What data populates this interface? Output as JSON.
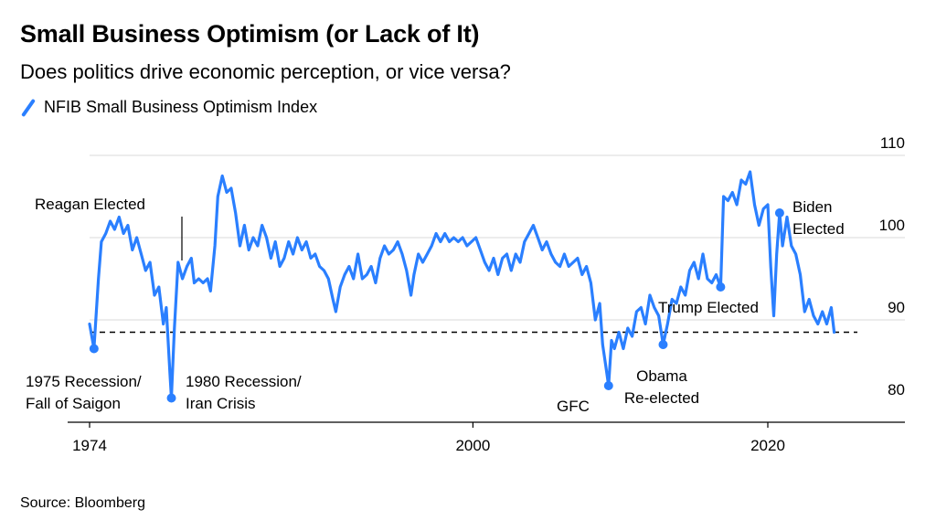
{
  "title": "Small Business Optimism (or Lack of It)",
  "subtitle": "Does politics drive economic perception, or vice versa?",
  "legend": {
    "label": "NFIB Small Business Optimism Index",
    "color": "#2a7fff"
  },
  "source": "Source: Bloomberg",
  "chart_data": {
    "type": "line",
    "title": "Small Business Optimism (or Lack of It)",
    "subtitle": "Does politics drive economic perception, or vice versa?",
    "xlabel": "",
    "ylabel": "",
    "x_ticks": [
      {
        "value": 1974,
        "label": "1974"
      },
      {
        "value": 2000,
        "label": "2000"
      },
      {
        "value": 2020,
        "label": "2020"
      }
    ],
    "y_ticks": [
      {
        "value": 110,
        "label": "110"
      },
      {
        "value": 100,
        "label": "100"
      },
      {
        "value": 90,
        "label": "90"
      },
      {
        "value": 80,
        "label": "80"
      }
    ],
    "xlim": [
      1973,
      2029
    ],
    "ylim": [
      79,
      110
    ],
    "grid": "horizontal",
    "legend_position": "top-left",
    "reference_line": {
      "y": 88.5,
      "style": "dashed"
    },
    "series": [
      {
        "name": "NFIB Small Business Optimism Index",
        "color": "#2a7fff",
        "points": [
          [
            1974.0,
            89.5
          ],
          [
            1974.3,
            86.5
          ],
          [
            1974.6,
            95.0
          ],
          [
            1974.8,
            99.5
          ],
          [
            1975.1,
            100.5
          ],
          [
            1975.4,
            102.0
          ],
          [
            1975.7,
            101.0
          ],
          [
            1976.0,
            102.5
          ],
          [
            1976.3,
            100.5
          ],
          [
            1976.6,
            101.5
          ],
          [
            1976.9,
            98.5
          ],
          [
            1977.2,
            100.0
          ],
          [
            1977.5,
            98.0
          ],
          [
            1977.8,
            96.0
          ],
          [
            1978.1,
            97.0
          ],
          [
            1978.4,
            93.0
          ],
          [
            1978.7,
            94.0
          ],
          [
            1979.0,
            89.5
          ],
          [
            1979.2,
            91.5
          ],
          [
            1979.45,
            83.5
          ],
          [
            1979.55,
            80.5
          ],
          [
            1979.75,
            89.0
          ],
          [
            1980.0,
            97.0
          ],
          [
            1980.3,
            95.0
          ],
          [
            1980.6,
            96.5
          ],
          [
            1980.9,
            97.5
          ],
          [
            1981.1,
            94.5
          ],
          [
            1981.4,
            95.0
          ],
          [
            1981.7,
            94.5
          ],
          [
            1982.0,
            95.0
          ],
          [
            1982.2,
            93.5
          ],
          [
            1982.5,
            99.0
          ],
          [
            1982.7,
            105.0
          ],
          [
            1983.0,
            107.5
          ],
          [
            1983.3,
            105.5
          ],
          [
            1983.6,
            106.0
          ],
          [
            1983.9,
            103.0
          ],
          [
            1984.2,
            99.0
          ],
          [
            1984.5,
            101.5
          ],
          [
            1984.8,
            98.5
          ],
          [
            1985.1,
            100.0
          ],
          [
            1985.4,
            99.0
          ],
          [
            1985.7,
            101.5
          ],
          [
            1986.0,
            100.0
          ],
          [
            1986.3,
            97.5
          ],
          [
            1986.6,
            99.5
          ],
          [
            1986.9,
            96.5
          ],
          [
            1987.2,
            97.5
          ],
          [
            1987.5,
            99.5
          ],
          [
            1987.8,
            98.0
          ],
          [
            1988.1,
            100.0
          ],
          [
            1988.4,
            98.5
          ],
          [
            1988.7,
            99.5
          ],
          [
            1989.0,
            97.5
          ],
          [
            1989.3,
            98.0
          ],
          [
            1989.6,
            96.5
          ],
          [
            1989.9,
            96.0
          ],
          [
            1990.2,
            95.0
          ],
          [
            1990.5,
            92.5
          ],
          [
            1990.7,
            91.0
          ],
          [
            1991.0,
            94.0
          ],
          [
            1991.3,
            95.5
          ],
          [
            1991.6,
            96.5
          ],
          [
            1991.9,
            95.0
          ],
          [
            1992.2,
            98.0
          ],
          [
            1992.5,
            95.0
          ],
          [
            1992.8,
            95.5
          ],
          [
            1993.1,
            96.5
          ],
          [
            1993.4,
            94.5
          ],
          [
            1993.7,
            97.5
          ],
          [
            1994.0,
            99.0
          ],
          [
            1994.3,
            98.0
          ],
          [
            1994.6,
            98.5
          ],
          [
            1994.9,
            99.5
          ],
          [
            1995.2,
            98.0
          ],
          [
            1995.5,
            96.0
          ],
          [
            1995.8,
            93.0
          ],
          [
            1996.0,
            95.5
          ],
          [
            1996.3,
            98.0
          ],
          [
            1996.6,
            97.0
          ],
          [
            1996.9,
            98.0
          ],
          [
            1997.2,
            99.0
          ],
          [
            1997.5,
            100.5
          ],
          [
            1997.8,
            99.5
          ],
          [
            1998.1,
            100.5
          ],
          [
            1998.4,
            99.5
          ],
          [
            1998.7,
            100.0
          ],
          [
            1999.0,
            99.5
          ],
          [
            1999.3,
            100.0
          ],
          [
            1999.6,
            99.0
          ],
          [
            1999.9,
            99.5
          ],
          [
            2000.2,
            100.0
          ],
          [
            2000.5,
            98.5
          ],
          [
            2000.8,
            97.0
          ],
          [
            2001.1,
            96.0
          ],
          [
            2001.4,
            97.5
          ],
          [
            2001.7,
            95.5
          ],
          [
            2002.0,
            97.5
          ],
          [
            2002.3,
            98.0
          ],
          [
            2002.6,
            96.0
          ],
          [
            2002.9,
            98.0
          ],
          [
            2003.2,
            97.0
          ],
          [
            2003.5,
            99.5
          ],
          [
            2003.8,
            100.5
          ],
          [
            2004.1,
            101.5
          ],
          [
            2004.4,
            100.0
          ],
          [
            2004.7,
            98.5
          ],
          [
            2005.0,
            99.5
          ],
          [
            2005.3,
            98.0
          ],
          [
            2005.6,
            97.0
          ],
          [
            2005.9,
            96.5
          ],
          [
            2006.2,
            98.0
          ],
          [
            2006.5,
            96.5
          ],
          [
            2006.8,
            97.0
          ],
          [
            2007.1,
            97.5
          ],
          [
            2007.4,
            95.5
          ],
          [
            2007.7,
            96.5
          ],
          [
            2008.0,
            94.5
          ],
          [
            2008.3,
            90.0
          ],
          [
            2008.6,
            92.0
          ],
          [
            2008.8,
            87.0
          ],
          [
            2009.0,
            84.5
          ],
          [
            2009.2,
            82.0
          ],
          [
            2009.4,
            87.5
          ],
          [
            2009.6,
            86.5
          ],
          [
            2009.9,
            88.5
          ],
          [
            2010.2,
            86.5
          ],
          [
            2010.5,
            89.0
          ],
          [
            2010.8,
            88.0
          ],
          [
            2011.1,
            91.0
          ],
          [
            2011.4,
            91.5
          ],
          [
            2011.7,
            89.5
          ],
          [
            2012.0,
            93.0
          ],
          [
            2012.3,
            91.5
          ],
          [
            2012.6,
            90.5
          ],
          [
            2012.9,
            87.0
          ],
          [
            2013.2,
            89.5
          ],
          [
            2013.5,
            92.5
          ],
          [
            2013.8,
            92.0
          ],
          [
            2014.1,
            94.0
          ],
          [
            2014.4,
            93.0
          ],
          [
            2014.7,
            96.0
          ],
          [
            2015.0,
            97.0
          ],
          [
            2015.3,
            95.0
          ],
          [
            2015.6,
            98.0
          ],
          [
            2015.9,
            95.0
          ],
          [
            2016.2,
            94.5
          ],
          [
            2016.5,
            95.5
          ],
          [
            2016.8,
            94.0
          ],
          [
            2017.0,
            105.0
          ],
          [
            2017.3,
            104.5
          ],
          [
            2017.6,
            105.5
          ],
          [
            2017.9,
            104.0
          ],
          [
            2018.2,
            107.0
          ],
          [
            2018.5,
            106.5
          ],
          [
            2018.8,
            108.0
          ],
          [
            2019.1,
            104.0
          ],
          [
            2019.4,
            101.5
          ],
          [
            2019.7,
            103.5
          ],
          [
            2020.0,
            104.0
          ],
          [
            2020.2,
            96.5
          ],
          [
            2020.4,
            90.5
          ],
          [
            2020.6,
            98.0
          ],
          [
            2020.8,
            103.0
          ],
          [
            2021.0,
            99.0
          ],
          [
            2021.3,
            102.5
          ],
          [
            2021.6,
            99.0
          ],
          [
            2021.9,
            98.0
          ],
          [
            2022.2,
            95.5
          ],
          [
            2022.5,
            91.0
          ],
          [
            2022.8,
            92.5
          ],
          [
            2023.1,
            90.5
          ],
          [
            2023.4,
            89.5
          ],
          [
            2023.7,
            91.0
          ],
          [
            2024.0,
            89.5
          ],
          [
            2024.3,
            91.5
          ],
          [
            2024.5,
            88.5
          ]
        ]
      }
    ],
    "annotations": [
      {
        "label": [
          "Reagan Elected"
        ],
        "x": 1980.5,
        "y": 96.5,
        "marker": "line"
      },
      {
        "label": [
          "1975 Recession/",
          "Fall of Saigon"
        ],
        "x": 1974.3,
        "y": 86.5,
        "marker": "dot"
      },
      {
        "label": [
          "1980 Recession/",
          "Iran Crisis"
        ],
        "x": 1979.55,
        "y": 80.5,
        "marker": "dot"
      },
      {
        "label": [
          "GFC"
        ],
        "x": 2009.2,
        "y": 82.0,
        "marker": "dot"
      },
      {
        "label": [
          "Obama",
          "Re-elected"
        ],
        "x": 2012.9,
        "y": 87.0,
        "marker": "dot"
      },
      {
        "label": [
          "Trump Elected"
        ],
        "x": 2016.8,
        "y": 94.0,
        "marker": "dot"
      },
      {
        "label": [
          "Biden",
          "Elected"
        ],
        "x": 2020.8,
        "y": 103.0,
        "marker": "dot"
      }
    ]
  }
}
